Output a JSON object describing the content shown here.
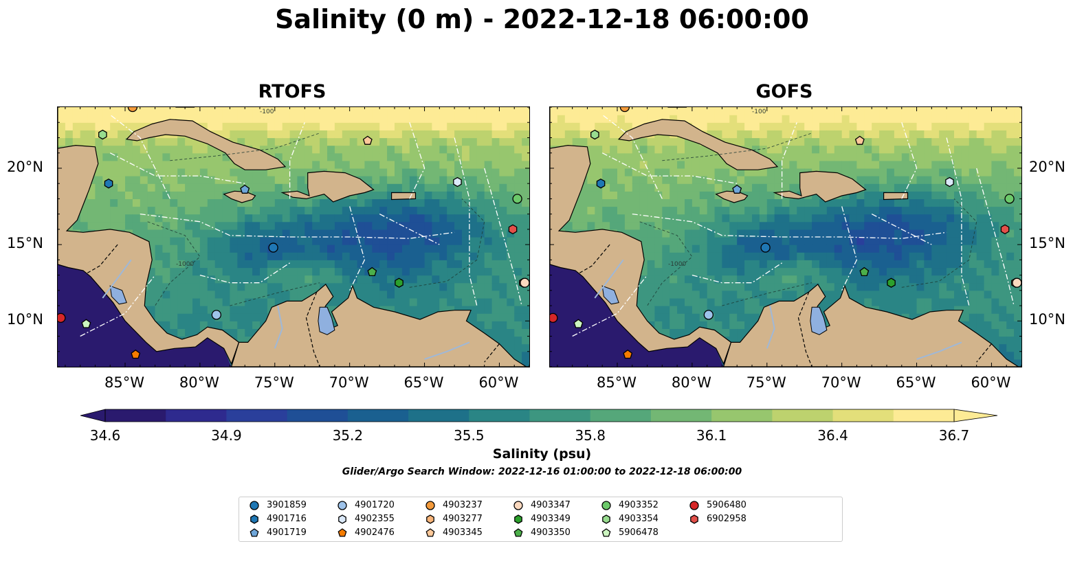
{
  "figure": {
    "title": "Salinity (0 m) - 2022-12-18 06:00:00"
  },
  "panels": [
    {
      "title": "RTOFS"
    },
    {
      "title": "GOFS"
    }
  ],
  "axes": {
    "lon_labels": [
      "85°W",
      "80°W",
      "75°W",
      "70°W",
      "65°W",
      "60°W"
    ],
    "lat_labels": [
      "20°N",
      "15°N",
      "10°N"
    ],
    "lon_range": [
      -89.5,
      -58.0
    ],
    "lat_range": [
      7.0,
      24.0
    ],
    "contour_labels": [
      "-1000",
      "-100"
    ]
  },
  "colorbar": {
    "label": "Salinity (psu)",
    "range": [
      34.6,
      36.7
    ],
    "extend": "both",
    "tick_labels": [
      "34.6",
      "34.9",
      "35.2",
      "35.5",
      "35.8",
      "36.1",
      "36.4",
      "36.7"
    ],
    "colors": [
      "#2a1a6e",
      "#2e2a8e",
      "#2a3f9b",
      "#1f4f96",
      "#1a6090",
      "#1e7189",
      "#2a8585",
      "#3d9680",
      "#55a77a",
      "#73b774",
      "#97c66e",
      "#bdd26e",
      "#e3df7a",
      "#fdeb95"
    ]
  },
  "search_window": "Glider/Argo Search Window: 2022-12-16 01:00:00 to 2022-12-18 06:00:00",
  "colors": {
    "land": "#d2b48c",
    "deep_ocean": "#2a1a6e",
    "river": "#9fb8d8",
    "lake": "#8fb0df"
  },
  "legend": [
    {
      "label": "3901859",
      "color": "#1f77b4",
      "marker": "circle"
    },
    {
      "label": "4901716",
      "color": "#1f77b4",
      "marker": "hexagon"
    },
    {
      "label": "4901719",
      "color": "#6fa6d9",
      "marker": "pentagon"
    },
    {
      "label": "4901720",
      "color": "#9ec3ea",
      "marker": "circle"
    },
    {
      "label": "4902355",
      "color": "#dbe9f9",
      "marker": "hexagon"
    },
    {
      "label": "4902476",
      "color": "#f57c00",
      "marker": "pentagon"
    },
    {
      "label": "4903237",
      "color": "#f39a3b",
      "marker": "circle"
    },
    {
      "label": "4903277",
      "color": "#f8b57a",
      "marker": "hexagon"
    },
    {
      "label": "4903345",
      "color": "#fdc99a",
      "marker": "pentagon"
    },
    {
      "label": "4903347",
      "color": "#fbd9bf",
      "marker": "circle"
    },
    {
      "label": "4903349",
      "color": "#2ca02c",
      "marker": "hexagon"
    },
    {
      "label": "4903350",
      "color": "#4caf4a",
      "marker": "pentagon"
    },
    {
      "label": "4903352",
      "color": "#6cc96a",
      "marker": "circle"
    },
    {
      "label": "4903354",
      "color": "#98dc8f",
      "marker": "hexagon"
    },
    {
      "label": "5906478",
      "color": "#ccf5c0",
      "marker": "pentagon"
    },
    {
      "label": "5906480",
      "color": "#d62728",
      "marker": "circle"
    },
    {
      "label": "6902958",
      "color": "#e3504a",
      "marker": "hexagon"
    }
  ],
  "float_positions": [
    {
      "id": "3901859",
      "lon": -75.1,
      "lat": 14.8
    },
    {
      "id": "4901716",
      "lon": -86.1,
      "lat": 19.0
    },
    {
      "id": "4901719",
      "lon": -77.0,
      "lat": 18.6
    },
    {
      "id": "4901720",
      "lon": -78.9,
      "lat": 10.4
    },
    {
      "id": "4902355",
      "lon": -62.8,
      "lat": 19.1
    },
    {
      "id": "4902476",
      "lon": -84.3,
      "lat": 7.8
    },
    {
      "id": "4903237",
      "lon": -84.5,
      "lat": 24.0
    },
    {
      "id": "4903277",
      "lon": -58.4,
      "lat": 12.5
    },
    {
      "id": "4903345",
      "lon": -68.8,
      "lat": 21.8
    },
    {
      "id": "4903347",
      "lon": -58.3,
      "lat": 12.5
    },
    {
      "id": "4903349",
      "lon": -66.7,
      "lat": 12.5
    },
    {
      "id": "4903350",
      "lon": -68.5,
      "lat": 13.2
    },
    {
      "id": "4903352",
      "lon": -58.8,
      "lat": 18.0
    },
    {
      "id": "4903354",
      "lon": -86.5,
      "lat": 22.2
    },
    {
      "id": "5906478",
      "lon": -87.6,
      "lat": 9.8
    },
    {
      "id": "5906480",
      "lon": -89.3,
      "lat": 10.2
    },
    {
      "id": "6902958",
      "lon": -59.1,
      "lat": 16.0
    }
  ]
}
